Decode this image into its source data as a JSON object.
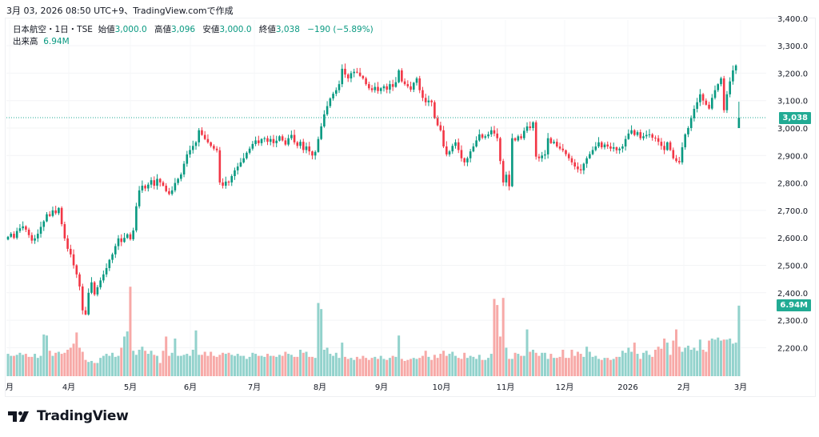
{
  "caption": "3月 03, 2026 08:50 UTC+9、TradingView.comで作成",
  "legend": {
    "symbol": "日本航空・1日・TSE",
    "open_label": "始値",
    "open": "3,000.0",
    "high_label": "高値",
    "high": "3,096",
    "low_label": "安値",
    "low": "3,000.0",
    "close_label": "終値",
    "close": "3,038",
    "change": "−190 (−5.89%)",
    "volume_label": "出来高",
    "volume": "6.94M"
  },
  "price_badge": "3,038",
  "volume_badge": "6.94M",
  "logo": {
    "text": "TradingView"
  },
  "colors": {
    "up": "#089981",
    "down": "#f23645",
    "vol_up": "#92d2cc",
    "vol_down": "#f7a9a7",
    "badge": "#22ab94"
  },
  "chart_data": {
    "type": "candlestick",
    "y_ticks": [
      "3,400.0",
      "3,300.0",
      "3,200.0",
      "3,100.0",
      "3,000.0",
      "2,900.0",
      "2,800.0",
      "2,700.0",
      "2,600.0",
      "2,500.0",
      "2,400.0",
      "2,300.0",
      "2,200.0"
    ],
    "ylim": [
      2100,
      3420
    ],
    "x_ticks": [
      "月",
      "4月",
      "5月",
      "6月",
      "7月",
      "8月",
      "9月",
      "10月",
      "11月",
      "12月",
      "2026",
      "2月",
      "3月"
    ],
    "grid": true,
    "last_candle": {
      "open": 3000,
      "high": 3096,
      "low": 3000,
      "close": 3038,
      "volume_m": 6.94
    },
    "close": [
      2604,
      2615,
      2600,
      2625,
      2635,
      2642,
      2630,
      2610,
      2590,
      2598,
      2615,
      2640,
      2660,
      2686,
      2680,
      2700,
      2690,
      2709,
      2650,
      2598,
      2560,
      2540,
      2500,
      2467,
      2423,
      2336,
      2321,
      2400,
      2438,
      2394,
      2420,
      2445,
      2467,
      2490,
      2520,
      2540,
      2570,
      2598,
      2585,
      2600,
      2613,
      2595,
      2627,
      2715,
      2773,
      2790,
      2780,
      2794,
      2810,
      2790,
      2815,
      2802,
      2790,
      2770,
      2760,
      2773,
      2800,
      2815,
      2831,
      2870,
      2904,
      2920,
      2935,
      2948,
      2992,
      2975,
      2960,
      2948,
      2935,
      2925,
      2919,
      2802,
      2790,
      2805,
      2802,
      2825,
      2846,
      2860,
      2875,
      2890,
      2910,
      2925,
      2942,
      2955,
      2945,
      2960,
      2963,
      2950,
      2960,
      2945,
      2954,
      2970,
      2955,
      2940,
      2963,
      2975,
      2948,
      2935,
      2950,
      2920,
      2933,
      2915,
      2900,
      2913,
      2960,
      3006,
      3050,
      3080,
      3108,
      3125,
      3138,
      3160,
      3216,
      3195,
      3181,
      3200,
      3205,
      3202,
      3190,
      3181,
      3160,
      3145,
      3138,
      3150,
      3135,
      3145,
      3152,
      3140,
      3160,
      3150,
      3167,
      3210,
      3170,
      3160,
      3152,
      3140,
      3165,
      3181,
      3138,
      3110,
      3094,
      3100,
      3094,
      3036,
      3010,
      2992,
      2933,
      2904,
      2915,
      2935,
      2948,
      2920,
      2890,
      2875,
      2890,
      2915,
      2933,
      2955,
      2977,
      2965,
      2970,
      2977,
      2992,
      2980,
      2963,
      2880,
      2802,
      2830,
      2788,
      2963,
      2955,
      2970,
      2963,
      2990,
      3006,
      3000,
      3021,
      2896,
      2890,
      2900,
      2904,
      2963,
      2945,
      2950,
      2933,
      2925,
      2919,
      2905,
      2890,
      2875,
      2860,
      2850,
      2846,
      2870,
      2890,
      2905,
      2920,
      2933,
      2948,
      2930,
      2940,
      2933,
      2925,
      2930,
      2919,
      2925,
      2933,
      2960,
      2980,
      2992,
      2975,
      2985,
      2963,
      2970,
      2975,
      2977,
      2965,
      2963,
      2950,
      2935,
      2920,
      2948,
      2920,
      2890,
      2880,
      2875,
      2930,
      2977,
      3000,
      3036,
      3070,
      3094,
      3123,
      3100,
      3085,
      3071,
      3110,
      3138,
      3160,
      3181,
      3065,
      3123,
      3170,
      3210,
      3228,
      3038
    ],
    "volume_m": [
      2.2,
      2.0,
      2.0,
      2.1,
      2.3,
      2.1,
      2.2,
      1.9,
      1.9,
      2.2,
      1.8,
      2.0,
      4.1,
      4.0,
      2.5,
      2.0,
      2.3,
      2.4,
      2.2,
      2.3,
      2.6,
      2.8,
      3.2,
      4.3,
      2.8,
      2.4,
      1.6,
      1.4,
      1.5,
      1.3,
      1.3,
      1.8,
      2.0,
      2.2,
      2.0,
      2.3,
      1.9,
      2.0,
      2.8,
      3.9,
      4.4,
      8.8,
      2.5,
      2.1,
      2.6,
      2.9,
      2.5,
      2.2,
      2.5,
      2.1,
      2.0,
      1.3,
      2.5,
      3.9,
      2.0,
      2.3,
      3.7,
      2.0,
      2.0,
      2.1,
      2.2,
      2.0,
      2.6,
      4.5,
      2.1,
      2.1,
      2.4,
      2.0,
      2.4,
      2.0,
      1.9,
      2.1,
      2.3,
      2.2,
      2.3,
      2.1,
      2.0,
      2.2,
      2.0,
      2.0,
      1.7,
      1.9,
      2.3,
      2.2,
      2.0,
      2.0,
      1.9,
      2.2,
      2.0,
      2.0,
      1.9,
      2.1,
      2.0,
      2.4,
      2.2,
      2.1,
      1.9,
      1.9,
      2.6,
      2.3,
      2.4,
      1.9,
      1.9,
      1.8,
      7.2,
      6.6,
      2.6,
      2.8,
      2.2,
      2.0,
      2.3,
      1.8,
      3.3,
      1.9,
      1.7,
      1.8,
      1.6,
      1.9,
      1.7,
      2.0,
      1.8,
      1.6,
      1.8,
      1.9,
      1.7,
      2.0,
      1.7,
      1.6,
      1.8,
      2.0,
      1.9,
      4.0,
      1.7,
      1.5,
      1.6,
      1.7,
      1.8,
      1.7,
      1.8,
      2.0,
      2.5,
      1.9,
      1.6,
      2.1,
      1.8,
      2.2,
      2.5,
      2.0,
      2.2,
      2.4,
      2.0,
      1.8,
      1.7,
      2.3,
      1.8,
      2.0,
      1.9,
      1.7,
      2.1,
      1.6,
      1.6,
      1.8,
      2.2,
      7.6,
      7.0,
      3.9,
      7.7,
      2.8,
      1.7,
      1.7,
      2.3,
      2.2,
      2.0,
      2.0,
      4.6,
      2.4,
      2.6,
      2.3,
      2.0,
      2.3,
      2.3,
      1.7,
      2.2,
      1.8,
      1.8,
      1.9,
      2.6,
      1.8,
      1.8,
      2.6,
      2.0,
      2.4,
      2.2,
      1.9,
      2.9,
      2.4,
      1.9,
      2.0,
      1.7,
      1.6,
      1.8,
      1.8,
      1.6,
      1.7,
      1.9,
      1.9,
      2.5,
      2.3,
      2.8,
      2.4,
      3.3,
      2.2,
      1.7,
      2.3,
      2.5,
      2.1,
      1.9,
      2.6,
      2.9,
      2.7,
      3.7,
      3.3,
      2.1,
      3.5,
      4.6,
      2.9,
      2.4,
      2.8,
      3.0,
      2.6,
      2.8,
      2.5,
      3.6,
      2.6,
      2.4,
      3.5,
      3.7,
      3.6,
      3.8,
      3.5,
      3.6,
      3.6,
      3.7,
      3.2,
      3.3,
      6.94
    ]
  }
}
